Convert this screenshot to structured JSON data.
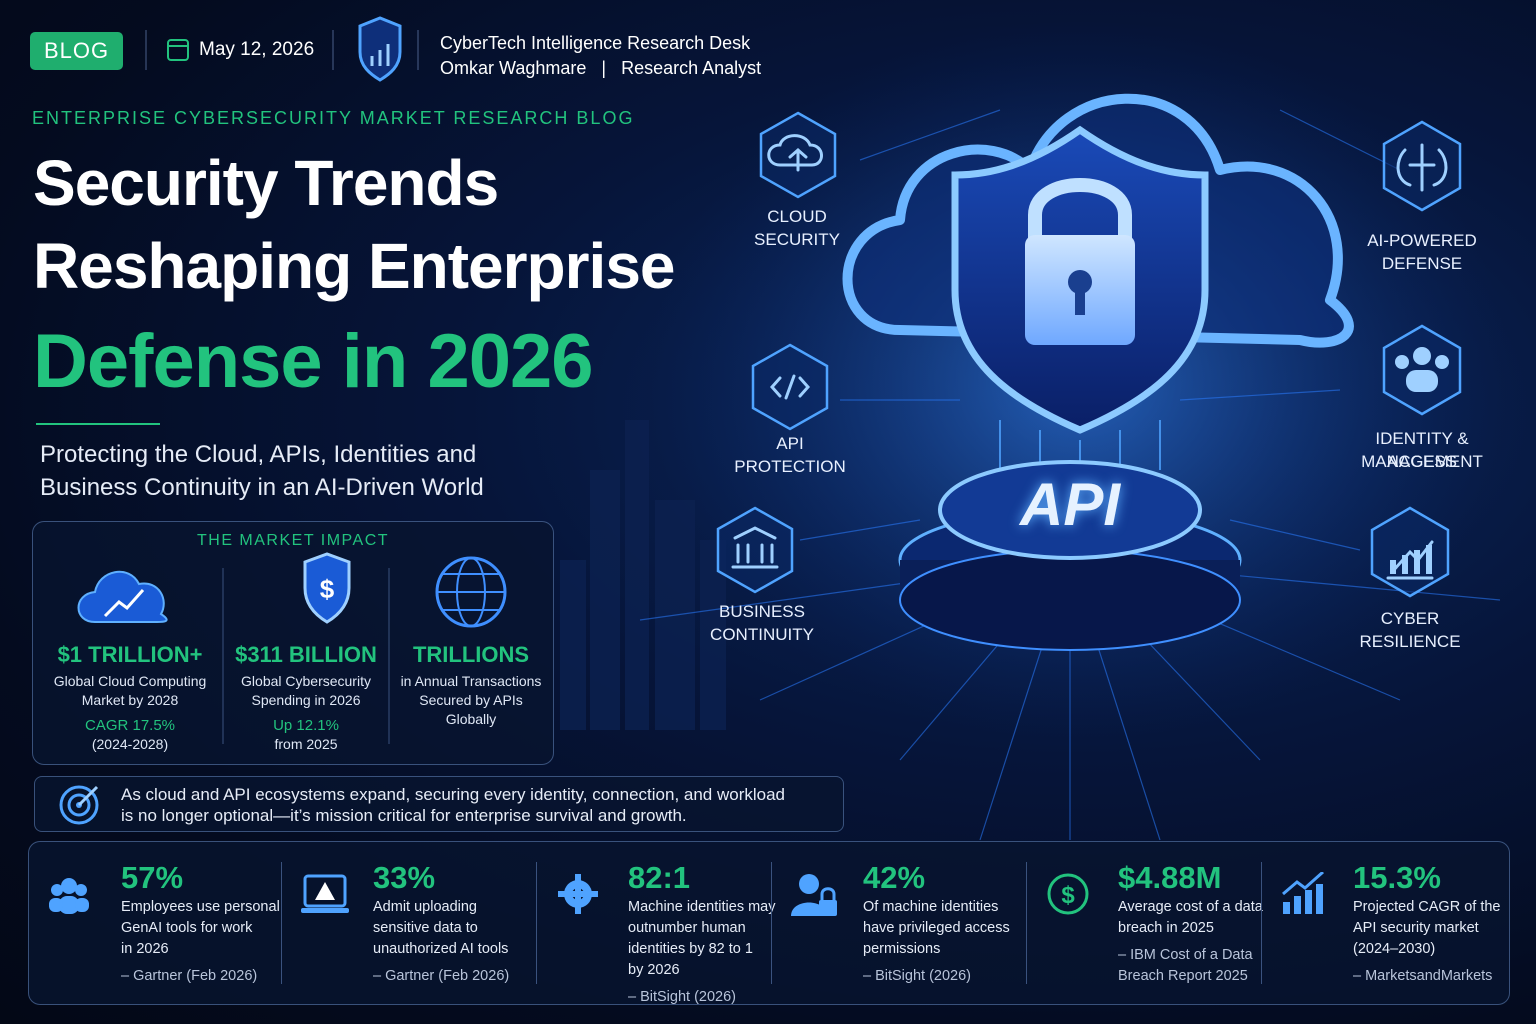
{
  "header": {
    "tag": "BLOG",
    "date": "May 12, 2026",
    "org": "CyberTech Intelligence Research Desk",
    "author": "Omkar Waghmare",
    "separator": "|",
    "role": "Research Analyst"
  },
  "kicker": "ENTERPRISE CYBERSECURITY MARKET RESEARCH BLOG",
  "title": {
    "line1": "Security Trends",
    "line2": "Reshaping Enterprise",
    "line3": "Defense in 2026"
  },
  "subtitle": {
    "line1": "Protecting the Cloud, APIs, Identities and",
    "line2": "Business Continuity in an AI-Driven World"
  },
  "market_impact": {
    "heading": "THE MARKET IMPACT",
    "items": [
      {
        "value": "$1 TRILLION+",
        "desc": [
          "Global Cloud Computing",
          "Market by 2028"
        ],
        "note": "CAGR 17.5%",
        "period": "(2024-2028)"
      },
      {
        "value": "$311 BILLION",
        "desc": [
          "Global Cybersecurity",
          "Spending in 2026"
        ],
        "note": "Up 12.1%",
        "period": "from 2025"
      },
      {
        "value": "TRILLIONS",
        "desc": [
          "in Annual Transactions",
          "Secured by APIs",
          "Globally"
        ]
      }
    ]
  },
  "callout": [
    "As cloud and API ecosystems expand, securing every identity, connection, and workload",
    "is no longer optional—it’s mission critical for enterprise survival and growth."
  ],
  "hero": {
    "center": "API",
    "features": [
      {
        "label": [
          "CLOUD",
          "SECURITY"
        ]
      },
      {
        "label": [
          "API",
          "PROTECTION"
        ]
      },
      {
        "label": [
          "BUSINESS",
          "CONTINUITY"
        ]
      },
      {
        "label": [
          "AI-POWERED",
          "DEFENSE"
        ]
      },
      {
        "label": [
          "IDENTITY & ACCESS",
          "MANAGEMENT"
        ]
      },
      {
        "label": [
          "CYBER",
          "RESILIENCE"
        ]
      }
    ]
  },
  "stats": [
    {
      "value": "57%",
      "desc": [
        "Employees use personal",
        "GenAI tools for work",
        "in 2026"
      ],
      "source": [
        "– Gartner (Feb 2026)"
      ]
    },
    {
      "value": "33%",
      "desc": [
        "Admit uploading",
        "sensitive data to",
        "unauthorized AI tools"
      ],
      "source": [
        "– Gartner (Feb 2026)"
      ]
    },
    {
      "value": "82:1",
      "desc": [
        "Machine identities may",
        "outnumber human",
        "identities by 82 to 1",
        "by 2026"
      ],
      "source": [
        "– BitSight (2026)"
      ]
    },
    {
      "value": "42%",
      "desc": [
        "Of machine identities",
        "have privileged access",
        "permissions"
      ],
      "source": [
        "– BitSight (2026)"
      ]
    },
    {
      "value": "$4.88M",
      "desc": [
        "Average cost of a data",
        "breach in 2025"
      ],
      "source": [
        "– IBM Cost of a Data",
        "Breach Report 2025"
      ]
    },
    {
      "value": "15.3%",
      "desc": [
        "Projected CAGR of the",
        "API security market",
        "(2024–2030)"
      ],
      "source": [
        "– MarketsandMarkets"
      ]
    }
  ]
}
